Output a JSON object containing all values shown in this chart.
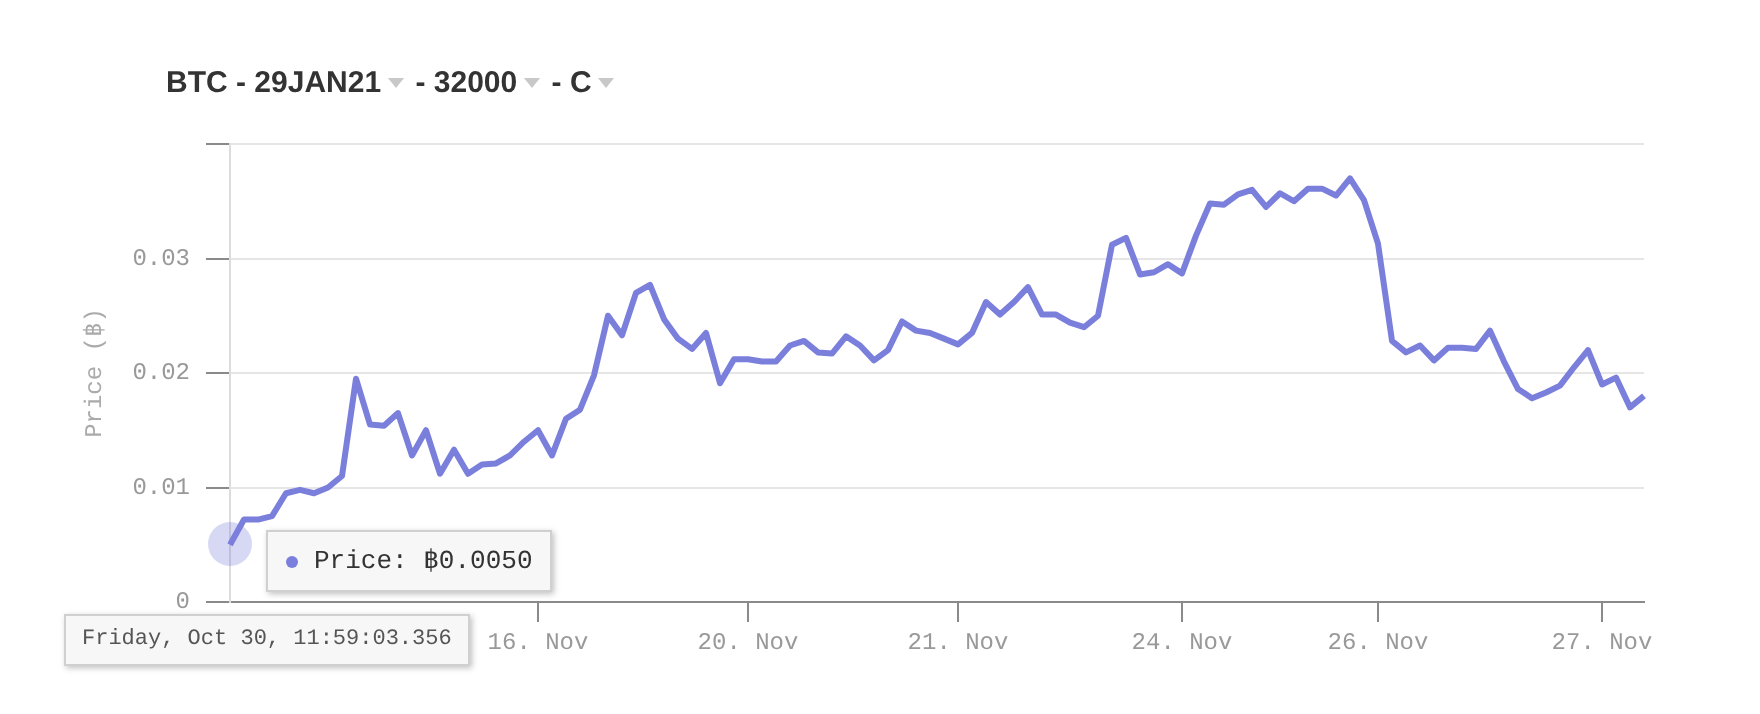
{
  "chart_data": {
    "type": "line",
    "title": "BTC - 29JAN21 - 32000 - C",
    "ylabel": "Price (฿)",
    "categories": [
      null,
      null,
      null,
      null,
      null,
      null,
      null,
      null,
      null,
      null,
      null,
      null,
      null,
      null,
      null,
      null,
      null,
      null,
      null,
      null,
      null,
      null,
      "16. Nov",
      null,
      null,
      null,
      null,
      null,
      null,
      null,
      null,
      null,
      null,
      null,
      null,
      null,
      null,
      "20. Nov",
      null,
      null,
      null,
      null,
      null,
      null,
      null,
      null,
      null,
      null,
      null,
      null,
      null,
      null,
      "21. Nov",
      null,
      null,
      null,
      null,
      null,
      null,
      null,
      null,
      null,
      null,
      null,
      null,
      null,
      null,
      null,
      "24. Nov",
      null,
      null,
      null,
      null,
      null,
      null,
      null,
      null,
      null,
      null,
      null,
      null,
      null,
      "26. Nov",
      null,
      null,
      null,
      null,
      null,
      null,
      null,
      null,
      null,
      null,
      null,
      null,
      null,
      null,
      null,
      "27. Nov",
      null,
      null,
      null
    ],
    "series": [
      {
        "color": "#7b7fdc",
        "values": [
          0.005,
          0.0072,
          0.0072,
          0.0075,
          0.0095,
          0.0098,
          0.0095,
          0.01,
          0.011,
          0.0195,
          0.0155,
          0.0154,
          0.0165,
          0.0128,
          0.015,
          0.0112,
          0.0133,
          0.0112,
          0.012,
          0.0121,
          0.0128,
          0.014,
          0.015,
          0.0128,
          0.016,
          0.0168,
          0.0198,
          0.025,
          0.0233,
          0.027,
          0.0277,
          0.0247,
          0.023,
          0.0221,
          0.0235,
          0.0191,
          0.0212,
          0.0212,
          0.021,
          0.021,
          0.0224,
          0.0228,
          0.0218,
          0.0217,
          0.0232,
          0.0224,
          0.0211,
          0.022,
          0.0245,
          0.0237,
          0.0235,
          0.023,
          0.0225,
          0.0235,
          0.0262,
          0.0251,
          0.0262,
          0.0275,
          0.0251,
          0.0251,
          0.0244,
          0.024,
          0.025,
          0.0312,
          0.0318,
          0.0286,
          0.0288,
          0.0295,
          0.0287,
          0.032,
          0.0348,
          0.0347,
          0.0356,
          0.036,
          0.0345,
          0.0357,
          0.035,
          0.0361,
          0.0361,
          0.0355,
          0.037,
          0.0351,
          0.0313,
          0.0228,
          0.0218,
          0.0224,
          0.0211,
          0.0222,
          0.0222,
          0.0221,
          0.0237,
          0.021,
          0.0186,
          0.0178,
          0.0183,
          0.0189,
          0.0205,
          0.022,
          0.019,
          0.0196,
          0.017,
          0.018
        ]
      }
    ],
    "ylim": [
      0,
      0.04
    ],
    "yticks": [
      0,
      0.01,
      0.02,
      0.03,
      {
        "value": 0.04,
        "label": null
      }
    ],
    "grid": "y",
    "legend": false,
    "marker": "none",
    "line_style": "solid",
    "annotations": [
      "Price: ฿0.0050",
      "Friday, Oct 30, 11:59:03.356"
    ]
  }
}
